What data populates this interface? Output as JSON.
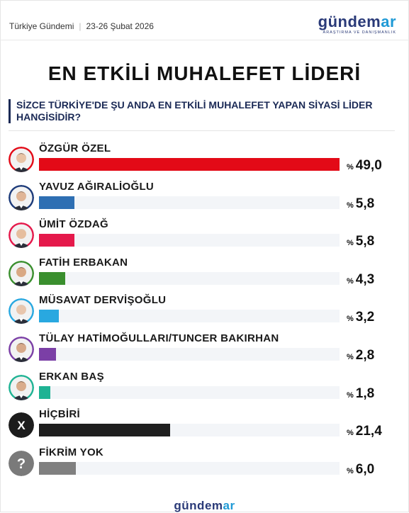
{
  "header": {
    "source": "Türkiye Gündemi",
    "date": "23-26 Şubat 2026",
    "logo_main": "gündem",
    "logo_accent": "ar",
    "logo_sub": "ARAŞTIRMA VE DANIŞMANLIK"
  },
  "title": "EN ETKİLİ MUHALEFET LİDERİ",
  "question": "SİZCE TÜRKİYE'DE ŞU ANDA EN ETKİLİ MUHALEFET YAPAN SİYASİ LİDER HANGİSİDİR?",
  "footer": {
    "logo_main": "gündem",
    "logo_accent": "ar"
  },
  "chart_data": {
    "type": "bar",
    "orientation": "horizontal",
    "xlim": [
      0,
      49
    ],
    "categories": [
      "ÖZGÜR ÖZEL",
      "YAVUZ AĞIRALİOĞLU",
      "ÜMİT ÖZDAĞ",
      "FATİH ERBAKAN",
      "MÜSAVAT DERVİŞOĞLU",
      "TÜLAY HATİMOĞULLARI/TUNCER BAKIRHAN",
      "ERKAN BAŞ",
      "HİÇBİRİ",
      "FİKRİM YOK"
    ],
    "values": [
      49.0,
      5.8,
      5.8,
      4.3,
      3.2,
      2.8,
      1.8,
      21.4,
      6.0
    ],
    "value_labels": [
      "49,0",
      "5,8",
      "5,8",
      "4,3",
      "3,2",
      "2,8",
      "1,8",
      "21,4",
      "6,0"
    ],
    "value_prefix": "%",
    "colors": [
      "#e30a17",
      "#2e6fb3",
      "#e5194b",
      "#3a8f2e",
      "#29a8e0",
      "#7b3fa6",
      "#1fb394",
      "#1f1f1f",
      "#808080"
    ],
    "icons": [
      "avatar-ozgur-ozel",
      "avatar-yavuz-agiralioglu",
      "avatar-umit-ozdag",
      "avatar-fatih-erbakan",
      "avatar-musavat-dervisoglu",
      "avatar-hatimogullari-bakirhan",
      "avatar-erkan-bas",
      "x-icon",
      "question-mark-icon"
    ]
  }
}
